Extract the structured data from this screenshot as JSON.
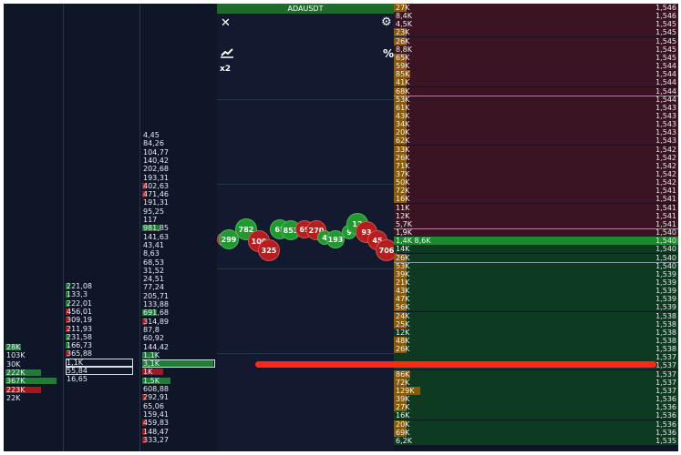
{
  "chart": {
    "title": "ADAUSDT",
    "close_icon": "✕",
    "settings_icon": "⚙",
    "percent_label": "%",
    "zoom_label": "x2",
    "bubbles": [
      {
        "label": "11",
        "color": "#b81c1c"
      },
      {
        "label": "299",
        "color": "#1f9a2c"
      },
      {
        "label": "782",
        "color": "#1f9a2c"
      },
      {
        "label": "100",
        "color": "#b81c1c"
      },
      {
        "label": "325",
        "color": "#b81c1c"
      },
      {
        "label": "65",
        "color": "#1f9a2c"
      },
      {
        "label": "853",
        "color": "#1f9a2c"
      },
      {
        "label": "69",
        "color": "#b81c1c"
      },
      {
        "label": "270",
        "color": "#b81c1c"
      },
      {
        "label": "4",
        "color": "#1f9a2c"
      },
      {
        "label": "193",
        "color": "#1f9a2c"
      },
      {
        "label": "9",
        "color": "#1f9a2c"
      },
      {
        "label": "12",
        "color": "#1f9a2c"
      },
      {
        "label": "93",
        "color": "#b81c1c"
      },
      {
        "label": "45",
        "color": "#b81c1c"
      },
      {
        "label": "706",
        "color": "#b81c1c"
      }
    ]
  },
  "cluster1": [
    {
      "text": "28K",
      "color": "#1e7f34",
      "fill": 0.3
    },
    {
      "text": "103K",
      "color": "#1e7f34",
      "fill": 0.0
    },
    {
      "text": "30K",
      "color": "#1e7f34",
      "fill": 0.0
    },
    {
      "text": "222K",
      "color": "#1e7f34",
      "fill": 0.7
    },
    {
      "text": "367K",
      "color": "#1e7f34",
      "fill": 1.0
    },
    {
      "text": "223K",
      "color": "#a01a1a",
      "fill": 0.7
    },
    {
      "text": "22K",
      "color": "#a01a1a",
      "fill": 0.0
    }
  ],
  "cluster2": [
    {
      "text": "221,08",
      "color": "#1e7f34",
      "fill": 0.05
    },
    {
      "text": "133,3",
      "color": "#1e7f34",
      "fill": 0.05
    },
    {
      "text": "222,01",
      "color": "#1e7f34",
      "fill": 0.05
    },
    {
      "text": "456,01",
      "color": "#a01a1a",
      "fill": 0.05
    },
    {
      "text": "309,19",
      "color": "#a01a1a",
      "fill": 0.05
    },
    {
      "text": "211,93",
      "color": "#a01a1a",
      "fill": 0.05
    },
    {
      "text": "231,58",
      "color": "#1e7f34",
      "fill": 0.05
    },
    {
      "text": "166,73",
      "color": "#1e7f34",
      "fill": 0.05
    },
    {
      "text": "365,88",
      "color": "#a01a1a",
      "fill": 0.05
    },
    {
      "text": "1,1K",
      "color": "#1e7f34",
      "fill": 0.0
    },
    {
      "text": "55,84",
      "color": "#1e7f34",
      "fill": 0.0
    },
    {
      "text": "16,65",
      "color": "#1e7f34",
      "fill": 0.0
    }
  ],
  "cluster3": [
    {
      "text": "4,45",
      "color": "#1e7f34",
      "fill": 0.0
    },
    {
      "text": "84,26",
      "color": "#1e7f34",
      "fill": 0.0
    },
    {
      "text": "104,77",
      "color": "#1e7f34",
      "fill": 0.0
    },
    {
      "text": "140,42",
      "color": "#1e7f34",
      "fill": 0.0
    },
    {
      "text": "202,68",
      "color": "#1e7f34",
      "fill": 0.0
    },
    {
      "text": "193,31",
      "color": "#1e7f34",
      "fill": 0.0
    },
    {
      "text": "402,63",
      "color": "#a01a1a",
      "fill": 0.05
    },
    {
      "text": "471,46",
      "color": "#a01a1a",
      "fill": 0.05
    },
    {
      "text": "191,31",
      "color": "#1e7f34",
      "fill": 0.0
    },
    {
      "text": "95,25",
      "color": "#1e7f34",
      "fill": 0.0
    },
    {
      "text": "117",
      "color": "#1e7f34",
      "fill": 0.0
    },
    {
      "text": "981,85",
      "color": "#1e7f34",
      "fill": 0.25
    },
    {
      "text": "141,63",
      "color": "#1e7f34",
      "fill": 0.0
    },
    {
      "text": "43,41",
      "color": "#1e7f34",
      "fill": 0.0
    },
    {
      "text": "8,63",
      "color": "#1e7f34",
      "fill": 0.0
    },
    {
      "text": "68,53",
      "color": "#1e7f34",
      "fill": 0.0
    },
    {
      "text": "31,52",
      "color": "#1e7f34",
      "fill": 0.0
    },
    {
      "text": "24,51",
      "color": "#1e7f34",
      "fill": 0.0
    },
    {
      "text": "77,24",
      "color": "#1e7f34",
      "fill": 0.0
    },
    {
      "text": "205,71",
      "color": "#1e7f34",
      "fill": 0.0
    },
    {
      "text": "133,88",
      "color": "#1e7f34",
      "fill": 0.0
    },
    {
      "text": "691,68",
      "color": "#1e7f34",
      "fill": 0.2
    },
    {
      "text": "314,89",
      "color": "#a01a1a",
      "fill": 0.05
    },
    {
      "text": "87,8",
      "color": "#1e7f34",
      "fill": 0.0
    },
    {
      "text": "60,92",
      "color": "#1e7f34",
      "fill": 0.0
    },
    {
      "text": "144,42",
      "color": "#1e7f34",
      "fill": 0.0
    },
    {
      "text": "1,1K",
      "color": "#1e7f34",
      "fill": 0.2
    },
    {
      "text": "3,1K",
      "color": "#1e7f34",
      "fill": 1.0
    },
    {
      "text": "1K",
      "color": "#a01a1a",
      "fill": 0.3
    },
    {
      "text": "1,5K",
      "color": "#1e7f34",
      "fill": 0.4
    },
    {
      "text": "608,88",
      "color": "#1e7f34",
      "fill": 0.0
    },
    {
      "text": "292,91",
      "color": "#a01a1a",
      "fill": 0.05
    },
    {
      "text": "65,06",
      "color": "#1e7f34",
      "fill": 0.0
    },
    {
      "text": "159,41",
      "color": "#1e7f34",
      "fill": 0.0
    },
    {
      "text": "459,83",
      "color": "#a01a1a",
      "fill": 0.05
    },
    {
      "text": "148,47",
      "color": "#a01a1a",
      "fill": 0.05
    },
    {
      "text": "333,27",
      "color": "#a01a1a",
      "fill": 0.05
    }
  ],
  "dom": {
    "ask_bg": "#3a1422",
    "bid_bg": "#0f3a22",
    "best_bg": "#1c8a2c",
    "vol_color": "#8a5a06",
    "rows": [
      {
        "vol": "27K",
        "price": "1,546",
        "side": "ask",
        "fill": 0.03
      },
      {
        "vol": "8,4K",
        "price": "1,546",
        "side": "ask",
        "fill": 0.0
      },
      {
        "vol": "4,5K",
        "price": "1,545",
        "side": "ask",
        "fill": 0.0
      },
      {
        "vol": "23K",
        "price": "1,545",
        "side": "ask",
        "fill": 0.03
      },
      {
        "vol": "26K",
        "price": "1,545",
        "side": "ask",
        "fill": 0.03
      },
      {
        "vol": "8,8K",
        "price": "1,545",
        "side": "ask",
        "fill": 0.0
      },
      {
        "vol": "65K",
        "price": "1,545",
        "side": "ask",
        "fill": 0.07
      },
      {
        "vol": "59K",
        "price": "1,544",
        "side": "ask",
        "fill": 0.07
      },
      {
        "vol": "85K",
        "price": "1,544",
        "side": "ask",
        "fill": 0.1
      },
      {
        "vol": "41K",
        "price": "1,544",
        "side": "ask",
        "fill": 0.05
      },
      {
        "vol": "68K",
        "price": "1,544",
        "side": "ask",
        "fill": 0.07
      },
      {
        "vol": "53K",
        "price": "1,544",
        "side": "ask",
        "fill": 0.06
      },
      {
        "vol": "61K",
        "price": "1,543",
        "side": "ask",
        "fill": 0.07
      },
      {
        "vol": "43K",
        "price": "1,543",
        "side": "ask",
        "fill": 0.05
      },
      {
        "vol": "34K",
        "price": "1,543",
        "side": "ask",
        "fill": 0.04
      },
      {
        "vol": "20K",
        "price": "1,543",
        "side": "ask",
        "fill": 0.03
      },
      {
        "vol": "62K",
        "price": "1,543",
        "side": "ask",
        "fill": 0.07
      },
      {
        "vol": "33K",
        "price": "1,542",
        "side": "ask",
        "fill": 0.04
      },
      {
        "vol": "26K",
        "price": "1,542",
        "side": "ask",
        "fill": 0.03
      },
      {
        "vol": "71K",
        "price": "1,542",
        "side": "ask",
        "fill": 0.08
      },
      {
        "vol": "37K",
        "price": "1,542",
        "side": "ask",
        "fill": 0.04
      },
      {
        "vol": "50K",
        "price": "1,542",
        "side": "ask",
        "fill": 0.06
      },
      {
        "vol": "72K",
        "price": "1,541",
        "side": "ask",
        "fill": 0.08
      },
      {
        "vol": "16K",
        "price": "1,541",
        "side": "ask",
        "fill": 0.02
      },
      {
        "vol": "11K",
        "price": "1,541",
        "side": "ask",
        "fill": 0.0
      },
      {
        "vol": "12K",
        "price": "1,541",
        "side": "ask",
        "fill": 0.0
      },
      {
        "vol": "5,7K",
        "price": "1,541",
        "side": "ask",
        "fill": 0.0
      },
      {
        "vol": "1,9K",
        "price": "1,540",
        "side": "ask",
        "fill": 0.0
      },
      {
        "vol": "1,4K",
        "vol2": "8,6K",
        "price": "1,540",
        "side": "best",
        "fill": 0.0
      },
      {
        "vol": "14K",
        "price": "1,540",
        "side": "bid",
        "fill": 0.0
      },
      {
        "vol": "26K",
        "price": "1,540",
        "side": "bid",
        "fill": 0.03
      },
      {
        "vol": "53K",
        "price": "1,540",
        "side": "bid",
        "fill": 0.06
      },
      {
        "vol": "39K",
        "price": "1,539",
        "side": "bid",
        "fill": 0.05
      },
      {
        "vol": "21K",
        "price": "1,539",
        "side": "bid",
        "fill": 0.03
      },
      {
        "vol": "43K",
        "price": "1,539",
        "side": "bid",
        "fill": 0.05
      },
      {
        "vol": "47K",
        "price": "1,539",
        "side": "bid",
        "fill": 0.05
      },
      {
        "vol": "56K",
        "price": "1,539",
        "side": "bid",
        "fill": 0.06
      },
      {
        "vol": "24K",
        "price": "1,538",
        "side": "bid",
        "fill": 0.03
      },
      {
        "vol": "25K",
        "price": "1,538",
        "side": "bid",
        "fill": 0.03
      },
      {
        "vol": "12K",
        "price": "1,538",
        "side": "bid",
        "fill": 0.0
      },
      {
        "vol": "48K",
        "price": "1,538",
        "side": "bid",
        "fill": 0.05
      },
      {
        "vol": "26K",
        "price": "1,538",
        "side": "bid",
        "fill": 0.03
      },
      {
        "vol": "",
        "price": "1,537",
        "side": "bid",
        "fill": 0.0
      },
      {
        "vol": "38K",
        "price": "1,537",
        "side": "bid",
        "fill": 0.0
      },
      {
        "vol": "86K",
        "price": "1,537",
        "side": "bid",
        "fill": 0.1
      },
      {
        "vol": "72K",
        "price": "1,537",
        "side": "bid",
        "fill": 0.08
      },
      {
        "vol": "129K",
        "price": "1,537",
        "side": "bid",
        "fill": 0.16
      },
      {
        "vol": "39K",
        "price": "1,536",
        "side": "bid",
        "fill": 0.05
      },
      {
        "vol": "27K",
        "price": "1,536",
        "side": "bid",
        "fill": 0.03
      },
      {
        "vol": "16K",
        "price": "1,536",
        "side": "bid",
        "fill": 0.0
      },
      {
        "vol": "20K",
        "price": "1,536",
        "side": "bid",
        "fill": 0.03
      },
      {
        "vol": "69K",
        "price": "1,536",
        "side": "bid",
        "fill": 0.08
      },
      {
        "vol": "6,2K",
        "price": "1,535",
        "side": "bid",
        "fill": 0.0
      }
    ]
  }
}
